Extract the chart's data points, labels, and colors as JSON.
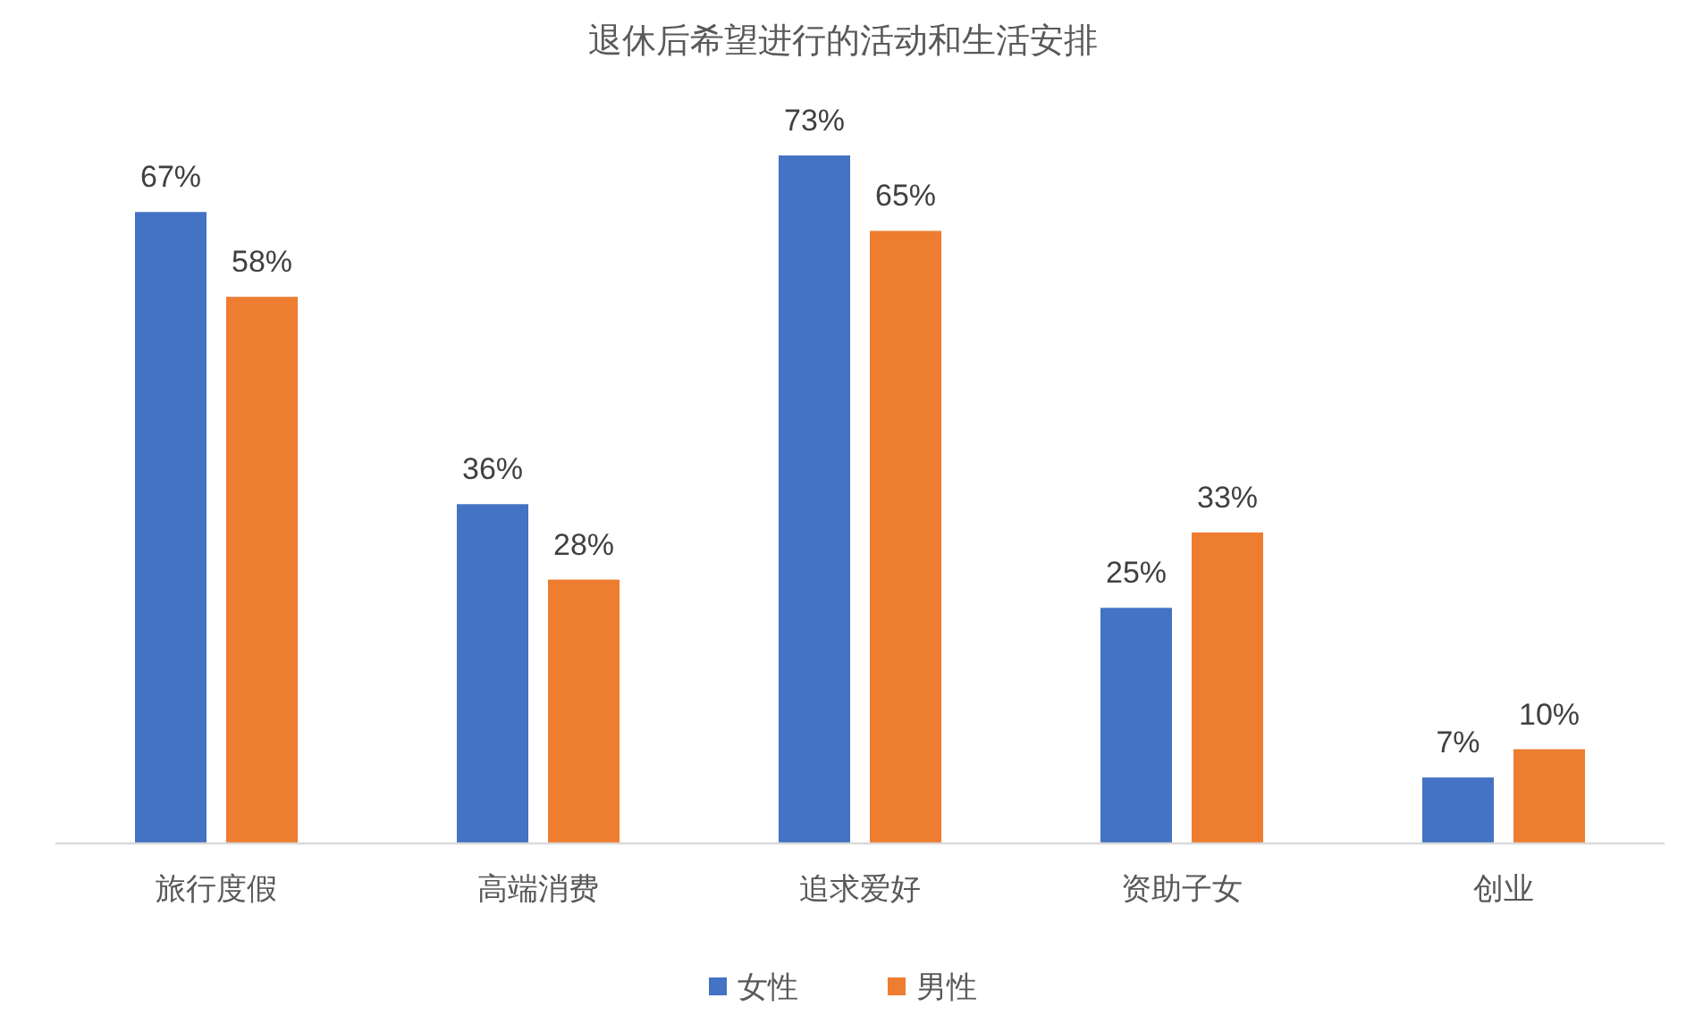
{
  "chart_data": {
    "type": "bar",
    "title": "退休后希望进行的活动和生活安排",
    "categories": [
      "旅行度假",
      "高端消费",
      "追求爱好",
      "资助子女",
      "创业"
    ],
    "series": [
      {
        "name": "女性",
        "color": "#4472c4",
        "values": [
          67,
          36,
          73,
          25,
          7
        ],
        "value_labels": [
          "67%",
          "36%",
          "73%",
          "25%",
          "7%"
        ]
      },
      {
        "name": "男性",
        "color": "#ed7d31",
        "values": [
          58,
          28,
          65,
          33,
          10
        ],
        "value_labels": [
          "58%",
          "28%",
          "65%",
          "33%",
          "10%"
        ]
      }
    ],
    "legend": "bottom"
  }
}
